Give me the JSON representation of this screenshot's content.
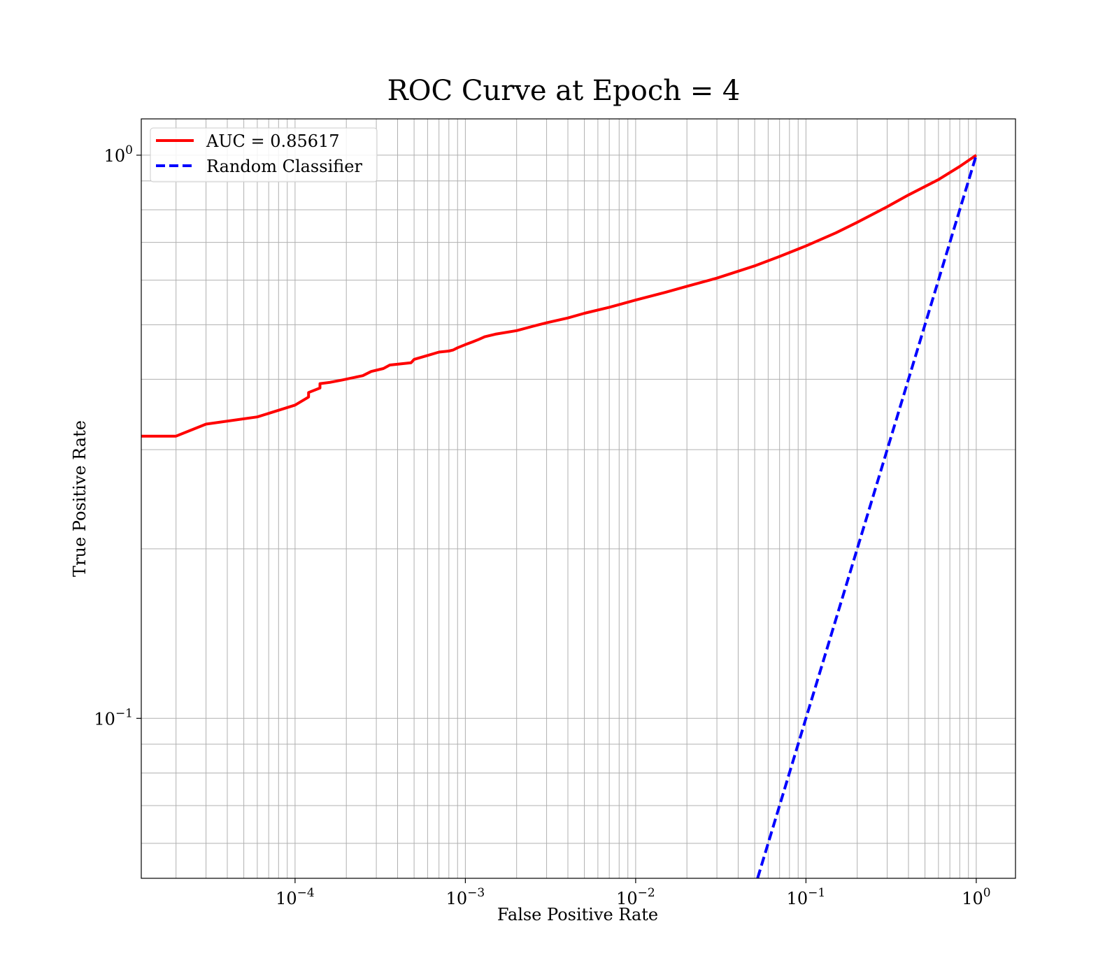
{
  "chart_data": {
    "type": "line",
    "title": "ROC Curve at Epoch = 4",
    "xlabel": "False Positive Rate",
    "ylabel": "True Positive Rate",
    "xscale": "log",
    "yscale": "log",
    "xlim": [
      1.25e-05,
      1.7
    ],
    "ylim": [
      0.052,
      1.16
    ],
    "grid": "major and minor",
    "legend_position": "top-left",
    "xticks": [
      {
        "base": "10",
        "exp": "−4",
        "value": 0.0001
      },
      {
        "base": "10",
        "exp": "−3",
        "value": 0.001
      },
      {
        "base": "10",
        "exp": "−2",
        "value": 0.01
      },
      {
        "base": "10",
        "exp": "−1",
        "value": 0.1
      },
      {
        "base": "10",
        "exp": "0",
        "value": 1
      }
    ],
    "yticks": [
      {
        "base": "10",
        "exp": "−1",
        "value": 0.1
      },
      {
        "base": "10",
        "exp": "0",
        "value": 1
      }
    ],
    "series": [
      {
        "name": "AUC = 0.85617",
        "color": "#ff0000",
        "style": "solid",
        "x": [
          1.25e-05,
          2e-05,
          3e-05,
          6e-05,
          0.0001,
          0.00012,
          0.00012,
          0.00014,
          0.00014,
          0.00016,
          0.00019,
          0.00025,
          0.00028,
          0.00033,
          0.00036,
          0.00048,
          0.0005,
          0.0006,
          0.0007,
          0.0008,
          0.00085,
          0.0009,
          0.001,
          0.0011,
          0.0012,
          0.0013,
          0.0015,
          0.002,
          0.0025,
          0.003,
          0.004,
          0.005,
          0.007,
          0.01,
          0.015,
          0.02,
          0.03,
          0.05,
          0.07,
          0.1,
          0.15,
          0.2,
          0.3,
          0.4,
          0.6,
          0.8,
          1.0
        ],
        "y": [
          0.317,
          0.317,
          0.333,
          0.343,
          0.36,
          0.372,
          0.379,
          0.386,
          0.393,
          0.395,
          0.399,
          0.406,
          0.413,
          0.418,
          0.424,
          0.428,
          0.434,
          0.441,
          0.447,
          0.449,
          0.451,
          0.455,
          0.461,
          0.466,
          0.471,
          0.476,
          0.481,
          0.488,
          0.497,
          0.504,
          0.514,
          0.524,
          0.537,
          0.553,
          0.571,
          0.585,
          0.605,
          0.636,
          0.661,
          0.69,
          0.728,
          0.76,
          0.81,
          0.85,
          0.905,
          0.955,
          1.0
        ]
      },
      {
        "name": "Random Classifier",
        "color": "#0000ff",
        "style": "dashed",
        "x": [
          0.052,
          1.0
        ],
        "y": [
          0.052,
          1.0
        ]
      }
    ]
  }
}
